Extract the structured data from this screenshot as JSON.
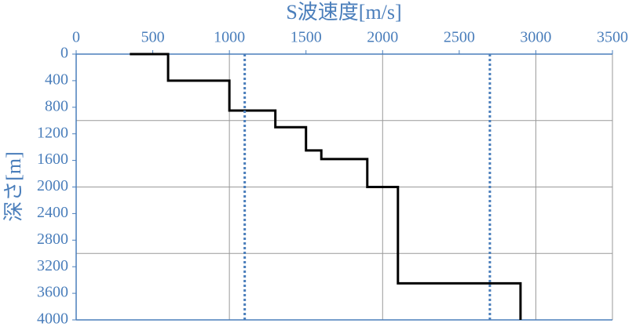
{
  "chart_data": {
    "type": "line",
    "title": "S波速度[m/s]",
    "y_label": "深さ[m]",
    "xlim": [
      0,
      3500
    ],
    "xticks": [
      0,
      500,
      1000,
      1500,
      2000,
      2500,
      3000,
      3500
    ],
    "ylim": [
      0,
      4000
    ],
    "yticks": [
      0,
      400,
      800,
      1200,
      1600,
      2000,
      2400,
      2800,
      3200,
      3600,
      4000
    ],
    "y_inverted": true,
    "x_axis_position": "top",
    "xgrid": [
      1000,
      2000,
      3000
    ],
    "ygrid": [
      1000,
      2000,
      3000
    ],
    "series": [
      {
        "color": "#000000",
        "style": "solid",
        "x": [
          350,
          600,
          600,
          1000,
          1000,
          1300,
          1300,
          1500,
          1500,
          1600,
          1600,
          1900,
          1900,
          2100,
          2100,
          2900,
          2900
        ],
        "values": [
          0,
          0,
          400,
          400,
          850,
          850,
          1100,
          1100,
          1450,
          1450,
          1580,
          1580,
          2000,
          2000,
          3450,
          3450,
          4000
        ]
      },
      {
        "color": "#4a7ebb",
        "style": "dotted",
        "x": [
          1100,
          1100
        ],
        "values": [
          0,
          4000
        ]
      },
      {
        "color": "#4a7ebb",
        "style": "dotted",
        "x": [
          2700,
          2700
        ],
        "values": [
          0,
          4000
        ]
      }
    ]
  }
}
